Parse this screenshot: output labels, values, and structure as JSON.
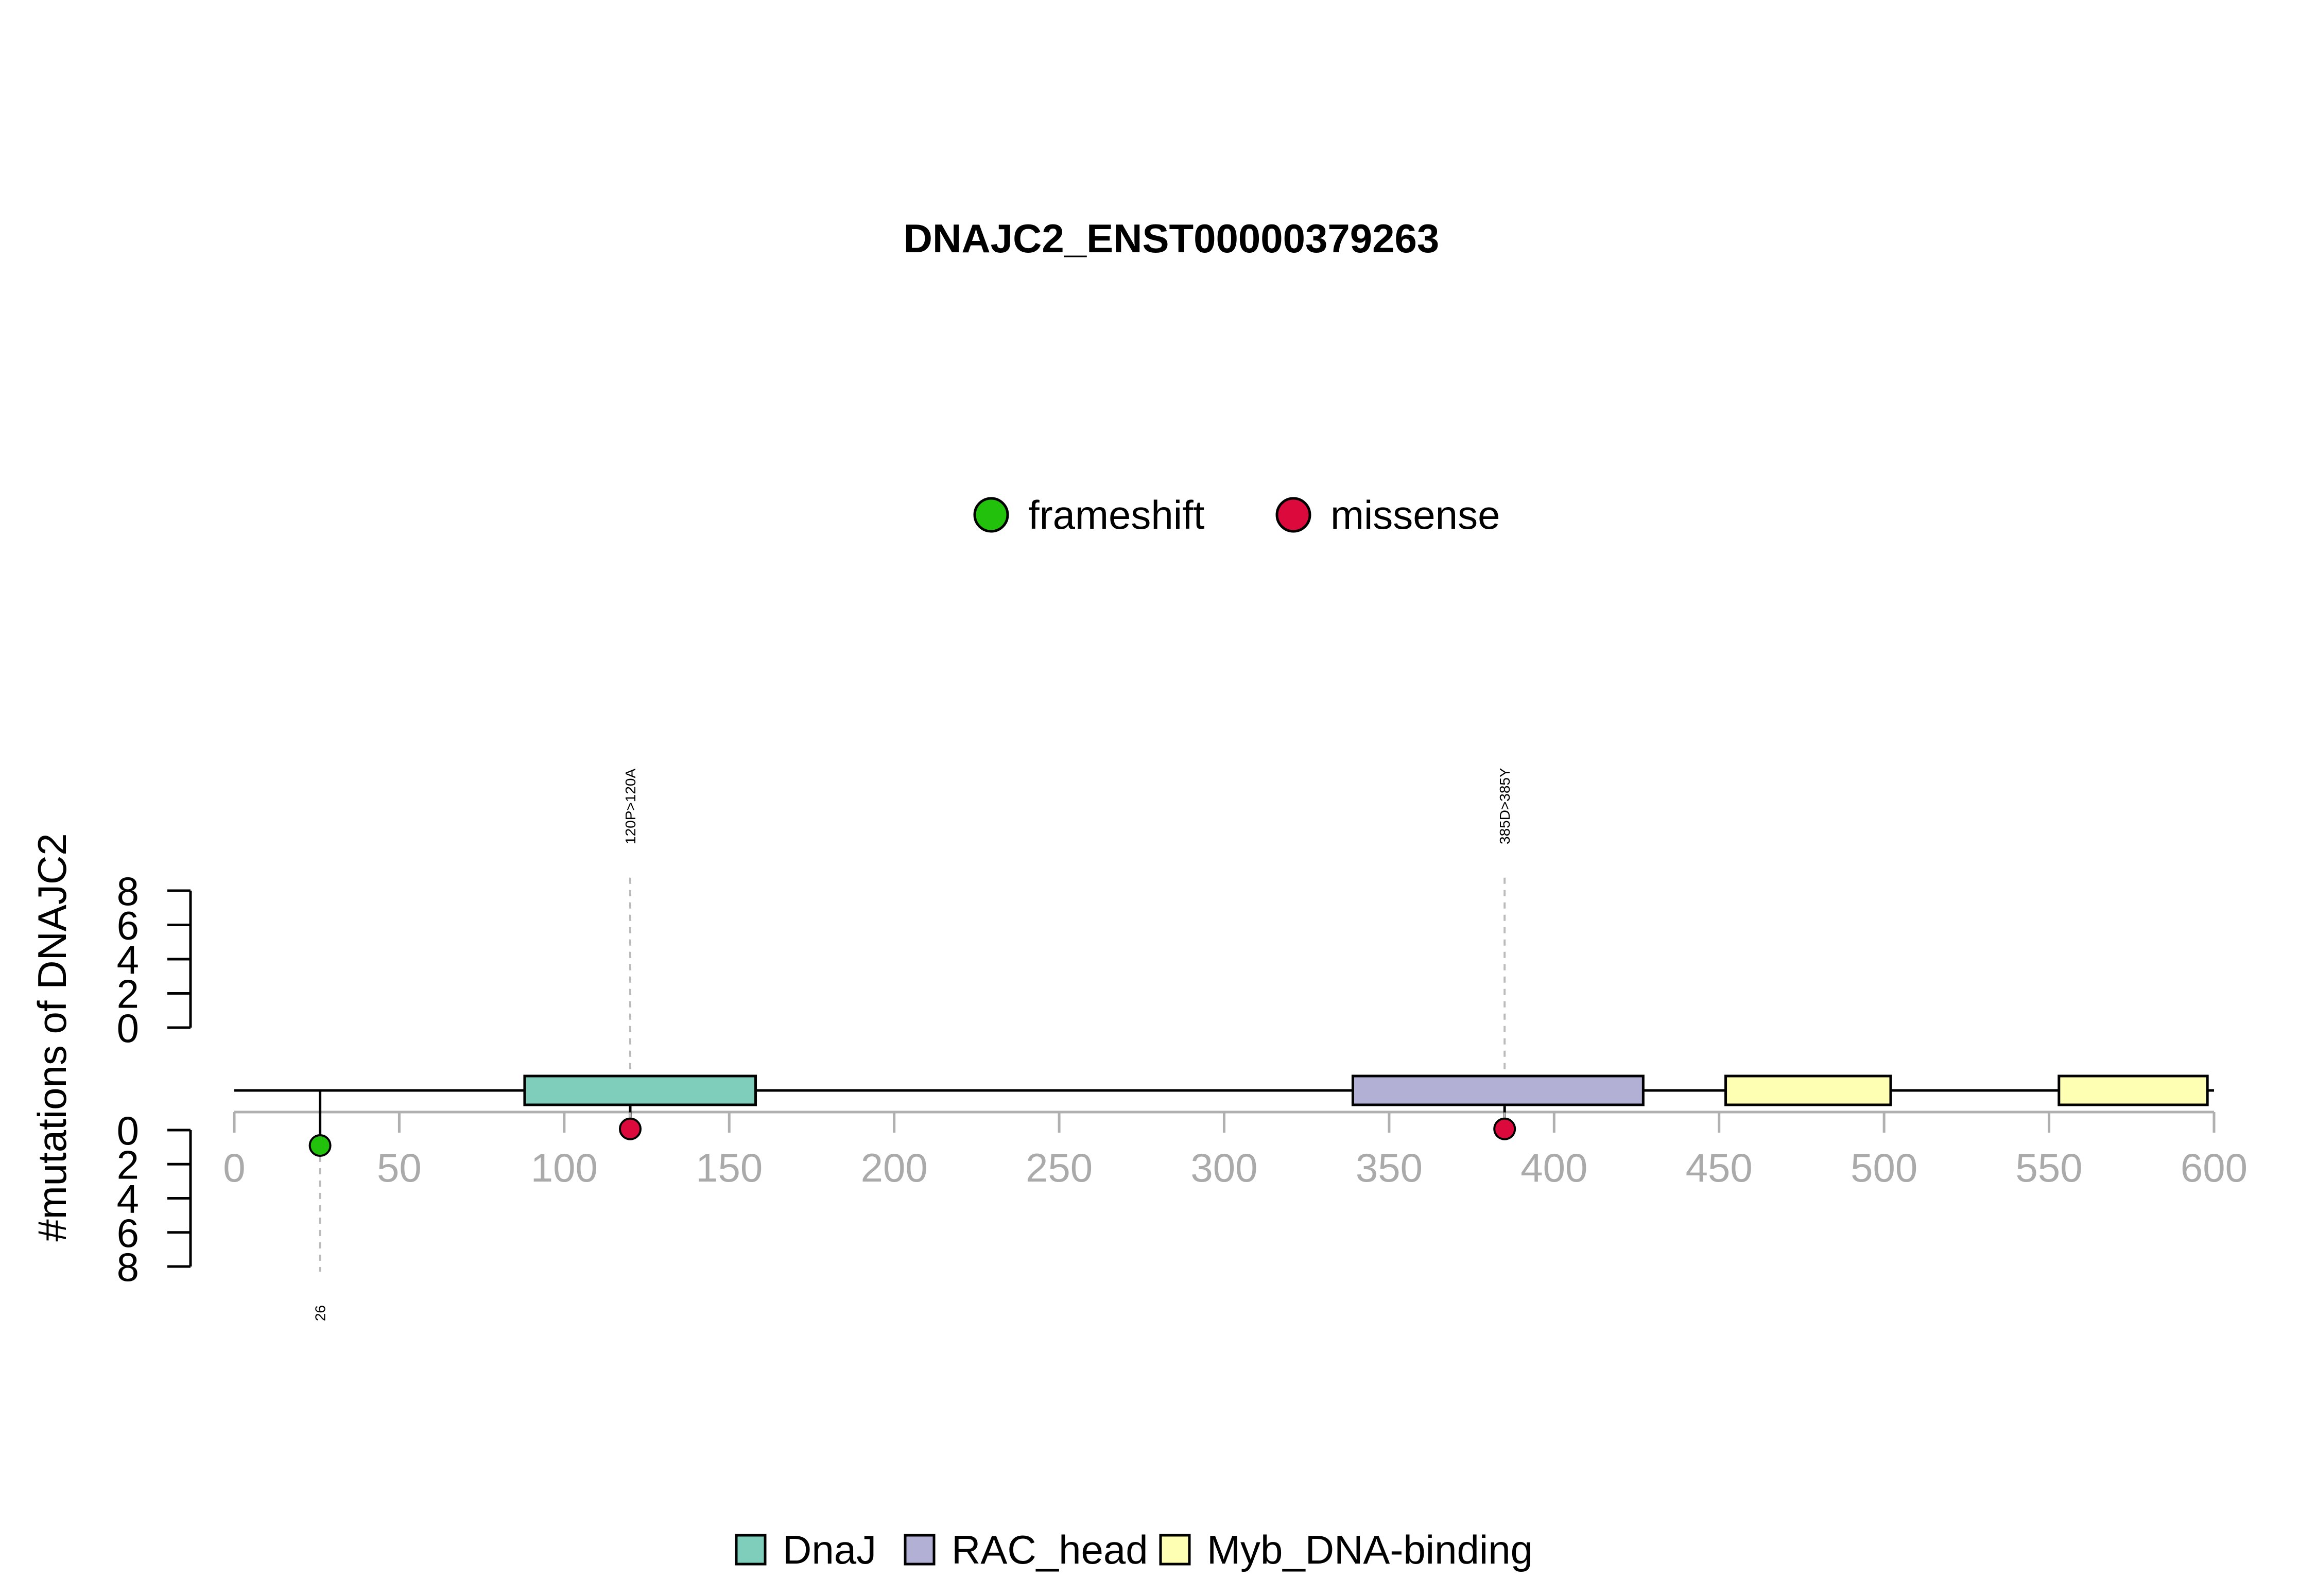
{
  "chart_data": {
    "type": "lollipop",
    "title": "DNAJC2_ENST00000379263",
    "ylabel": "#mutations of DNAJC2",
    "xlim": [
      0,
      600
    ],
    "x_ticks": [
      "0",
      "50",
      "100",
      "150",
      "200",
      "250",
      "300",
      "350",
      "400",
      "450",
      "500",
      "550",
      "600"
    ],
    "y_ticks": [
      "0",
      "2",
      "4",
      "6",
      "8"
    ],
    "ylim": [
      0,
      8
    ],
    "protein_length": 600,
    "mutation_legend": [
      {
        "label": "frameshift",
        "color": "#22c20c"
      },
      {
        "label": "missense",
        "color": "#dc0a3c"
      }
    ],
    "domain_legend": [
      {
        "label": "DnaJ",
        "color": "#7fcdbb"
      },
      {
        "label": "RAC_head",
        "color": "#b3b0d6"
      },
      {
        "label": "Myb_DNA-binding",
        "color": "#ffffb3"
      }
    ],
    "domains": [
      {
        "name": "DnaJ",
        "start": 88,
        "end": 158,
        "color": "#7fcdbb"
      },
      {
        "name": "RAC_head",
        "start": 339,
        "end": 427,
        "color": "#b3b0d6"
      },
      {
        "name": "Myb_DNA-binding",
        "start": 452,
        "end": 502,
        "color": "#ffffb3"
      },
      {
        "name": "Myb_DNA-binding",
        "start": 553,
        "end": 598,
        "color": "#ffffb3"
      }
    ],
    "mutations": [
      {
        "position": 26,
        "label": "26",
        "type": "frameshift",
        "count": 1,
        "side": "bottom",
        "color": "#22c20c"
      },
      {
        "position": 120,
        "label": "120P>120A",
        "type": "missense",
        "count": 1,
        "side": "top",
        "color": "#dc0a3c"
      },
      {
        "position": 385,
        "label": "385D>385Y",
        "type": "missense",
        "count": 1,
        "side": "top",
        "color": "#dc0a3c"
      }
    ]
  }
}
